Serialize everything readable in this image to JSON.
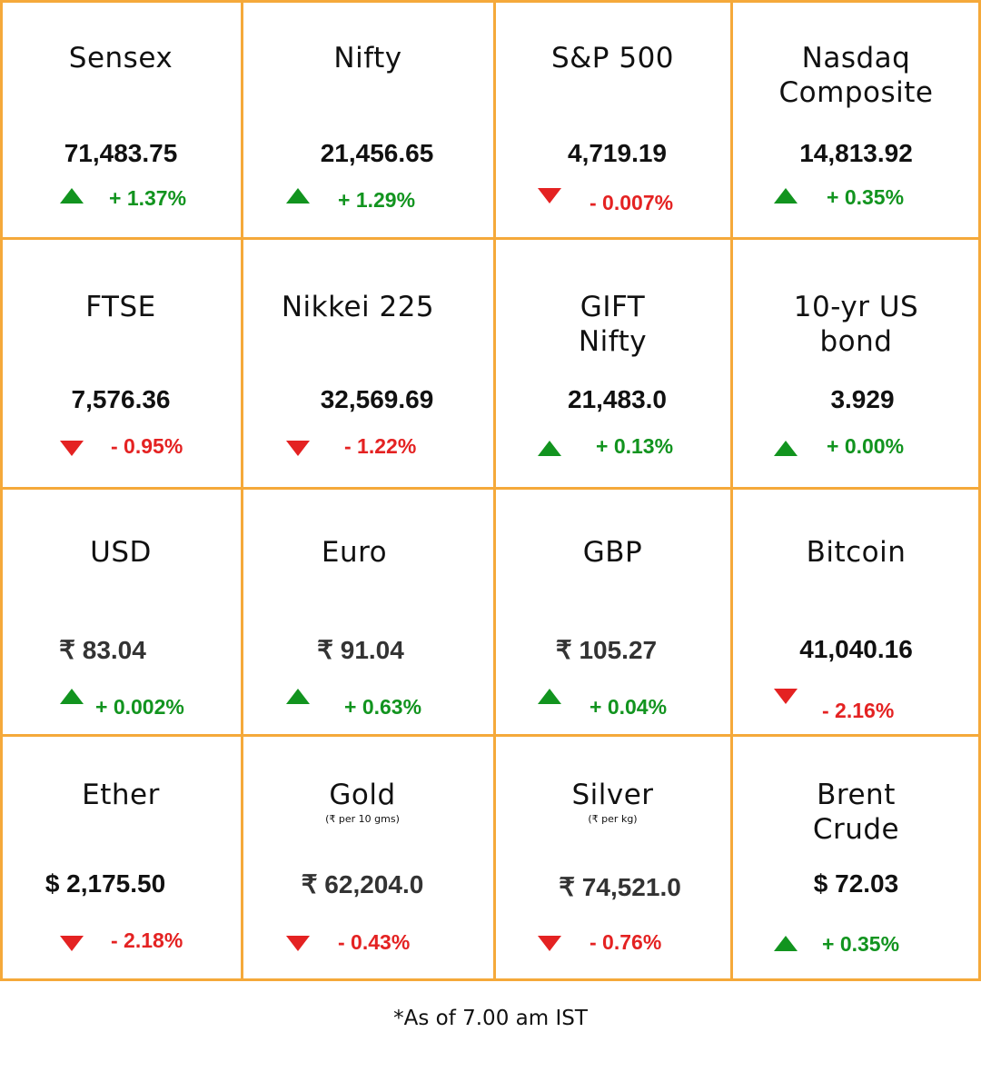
{
  "colors": {
    "grid": "#f5a93a",
    "up": "#12941f",
    "down": "#e42222",
    "text": "#111111"
  },
  "tiles": [
    {
      "name": "Sensex",
      "value": "71,483.75",
      "direction": "up",
      "change": "+ 1.37%"
    },
    {
      "name": "Nifty",
      "value": "21,456.65",
      "direction": "up",
      "change": "+ 1.29%"
    },
    {
      "name": "S&P 500",
      "value": "4,719.19",
      "direction": "down",
      "change": "- 0.007%"
    },
    {
      "name": "Nasdaq Composite",
      "value": "14,813.92",
      "direction": "up",
      "change": "+ 0.35%"
    },
    {
      "name": "FTSE",
      "value": "7,576.36",
      "direction": "down",
      "change": "- 0.95%"
    },
    {
      "name": "Nikkei 225",
      "value": "32,569.69",
      "direction": "down",
      "change": "- 1.22%"
    },
    {
      "name": "GIFT Nifty",
      "value": "21,483.0",
      "direction": "up",
      "change": "+ 0.13%"
    },
    {
      "name": "10-yr US bond",
      "value": "3.929",
      "direction": "up",
      "change": "+ 0.00%"
    },
    {
      "name": "USD",
      "value": "₹ 83.04",
      "direction": "up",
      "change": "+ 0.002%"
    },
    {
      "name": "Euro",
      "value": "₹ 91.04",
      "direction": "up",
      "change": "+ 0.63%"
    },
    {
      "name": "GBP",
      "value": "₹ 105.27",
      "direction": "up",
      "change": "+ 0.04%"
    },
    {
      "name": "Bitcoin",
      "value": "41,040.16",
      "direction": "down",
      "change": "- 2.16%"
    },
    {
      "name": "Ether",
      "value": "$ 2,175.50",
      "direction": "down",
      "change": "- 2.18%"
    },
    {
      "name": "Gold",
      "unit": "(₹ per 10 gms)",
      "value": "₹ 62,204.0",
      "direction": "down",
      "change": "- 0.43%"
    },
    {
      "name": "Silver",
      "unit": "(₹ per kg)",
      "value": "₹ 74,521.0",
      "direction": "down",
      "change": "- 0.76%"
    },
    {
      "name": "Brent Crude",
      "value": "$ 72.03",
      "direction": "up",
      "change": "+ 0.35%"
    }
  ],
  "footnote": "*As of 7.00 am IST"
}
